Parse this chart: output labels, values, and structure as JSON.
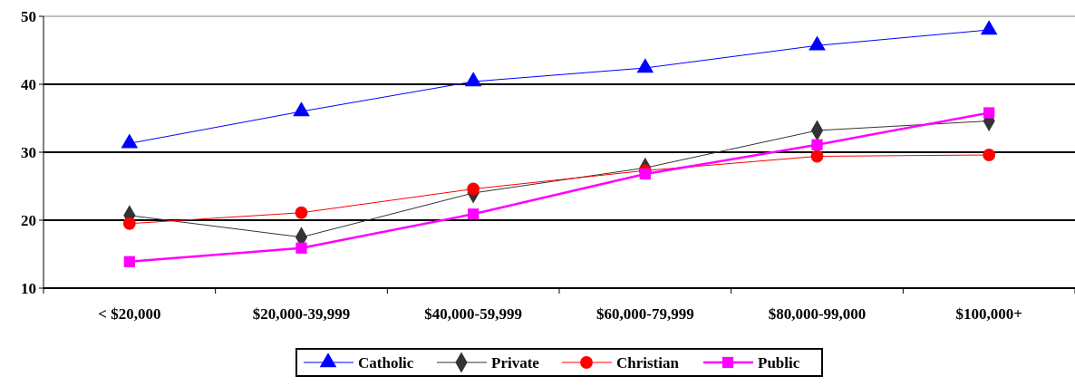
{
  "chart_data": {
    "type": "line",
    "categories": [
      "< $20,000",
      "$20,000-39,999",
      "$40,000-59,999",
      "$60,000-79,999",
      "$80,000-99,000",
      "$100,000+"
    ],
    "series": [
      {
        "name": "Catholic",
        "color": "#0000ff",
        "marker": "triangle",
        "values": [
          31.3,
          36,
          40.4,
          42.4,
          45.7,
          48
        ]
      },
      {
        "name": "Private",
        "color": "#333333",
        "marker": "diamond",
        "values": [
          20.7,
          17.5,
          24,
          27.7,
          33.2,
          34.6
        ]
      },
      {
        "name": "Christian",
        "color": "#ff0000",
        "marker": "circle",
        "values": [
          19.5,
          21.1,
          24.6,
          27.3,
          29.4,
          29.6
        ]
      },
      {
        "name": "Public",
        "color": "#ff00ff",
        "marker": "square",
        "values": [
          13.9,
          15.9,
          20.9,
          26.8,
          31.1,
          35.8
        ]
      }
    ],
    "ylim": [
      10,
      50
    ],
    "yticks": [
      10,
      20,
      30,
      40,
      50
    ],
    "grid": "y",
    "legend": "bottom"
  }
}
